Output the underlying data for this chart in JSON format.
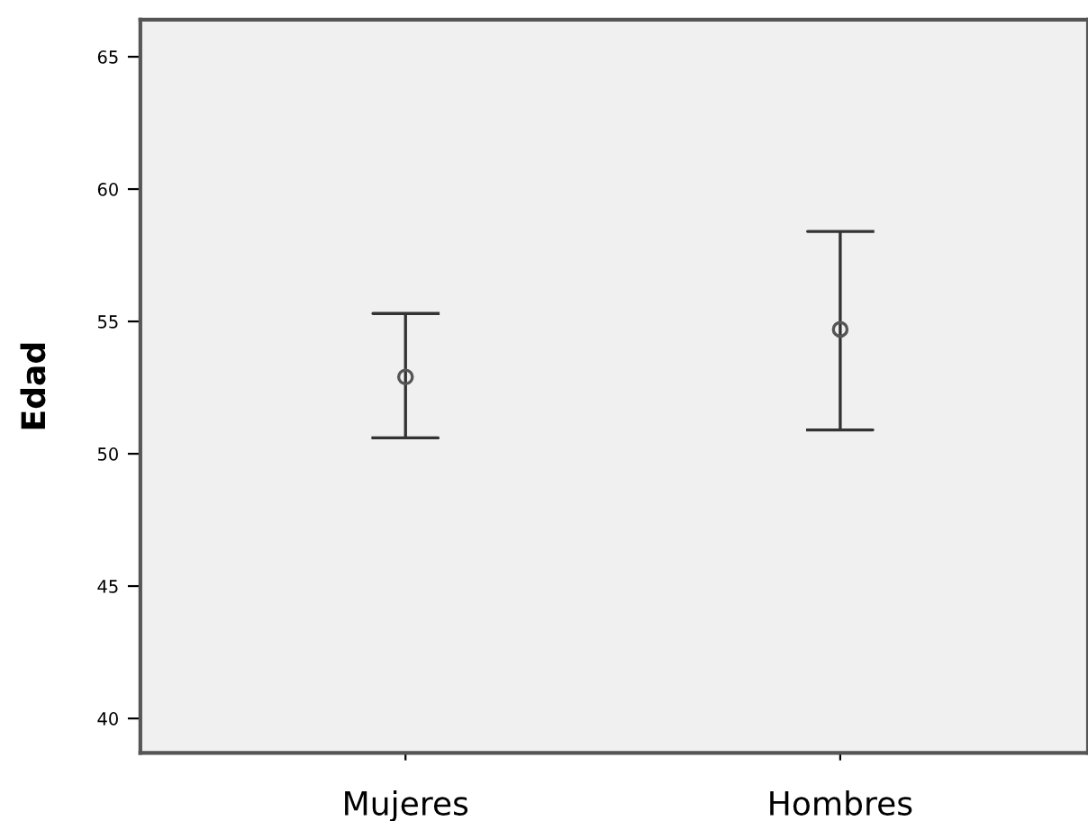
{
  "chart_data": {
    "type": "scatter",
    "ylabel": "Edad",
    "categories": [
      "Mujeres",
      "Hombres"
    ],
    "values": [
      52.9,
      54.7
    ],
    "errors": [
      [
        50.6,
        55.3
      ],
      [
        50.9,
        58.4
      ]
    ],
    "color": "#555555",
    "marker": "circle",
    "ylim": [
      38.7,
      66.4
    ],
    "yticks": [
      40,
      45,
      50,
      55,
      60,
      65
    ],
    "grid": false
  }
}
